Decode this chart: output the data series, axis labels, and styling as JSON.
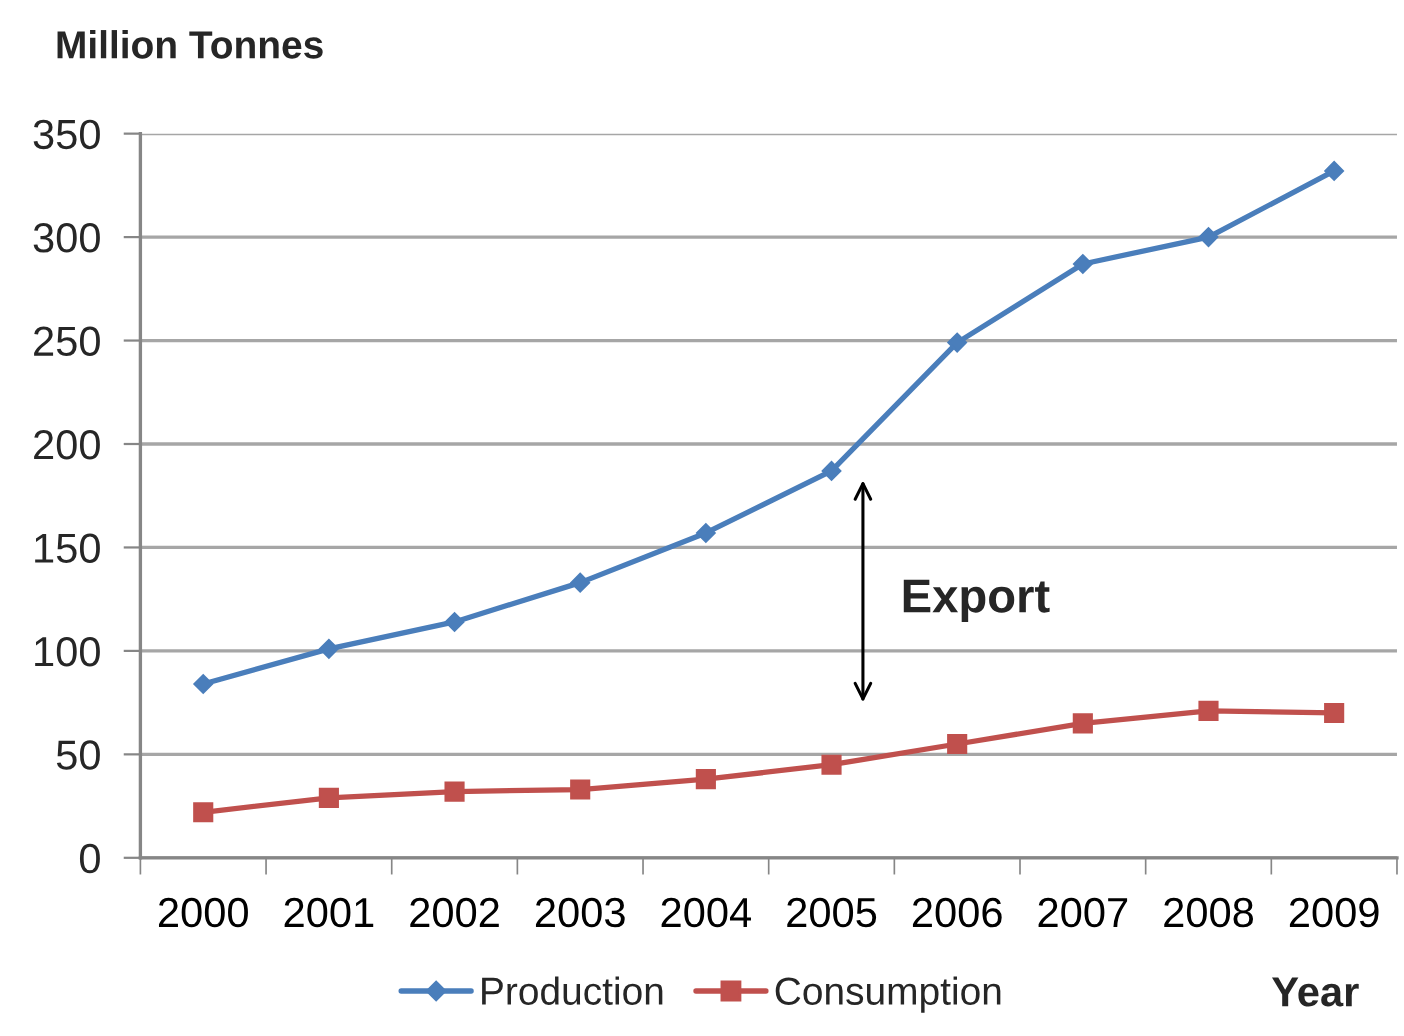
{
  "chart_data": {
    "type": "line",
    "ylabel": "Million Tonnes",
    "xlabel": "Year",
    "categories": [
      "2000",
      "2001",
      "2002",
      "2003",
      "2004",
      "2005",
      "2006",
      "2007",
      "2008",
      "2009"
    ],
    "series": [
      {
        "name": "Production",
        "color": "#4a7ebb",
        "marker": "diamond",
        "values": [
          84,
          101,
          114,
          133,
          157,
          187,
          249,
          287,
          300,
          332
        ]
      },
      {
        "name": "Consumption",
        "color": "#c0504d",
        "marker": "square",
        "values": [
          22,
          29,
          32,
          33,
          38,
          45,
          55,
          65,
          71,
          70
        ]
      }
    ],
    "ylim": [
      0,
      350
    ],
    "yticks": [
      0,
      50,
      100,
      150,
      200,
      250,
      300,
      350
    ],
    "grid": "y",
    "legend": "bottom",
    "line_style": "solid",
    "annotations": [
      "Export"
    ]
  }
}
